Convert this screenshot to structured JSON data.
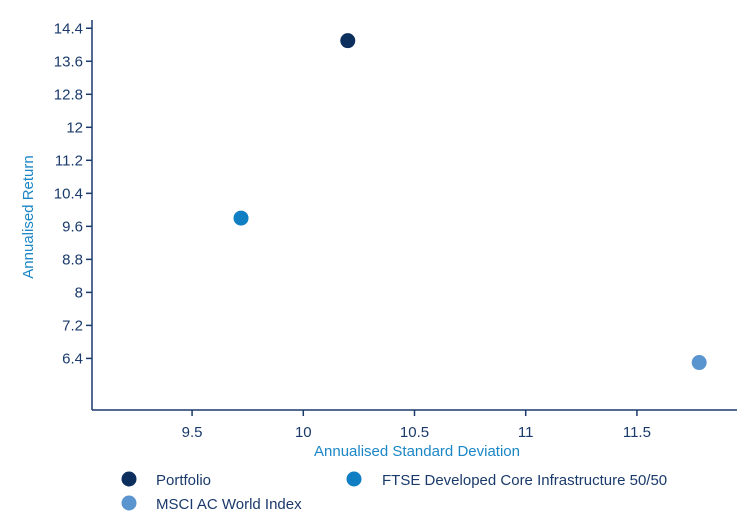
{
  "chart_data": {
    "type": "scatter",
    "title": "",
    "xlabel": "Annualised Standard Deviation",
    "ylabel": "Annualised Return",
    "xlim": [
      9.05,
      11.95
    ],
    "ylim": [
      5.15,
      14.6
    ],
    "xticks": [
      9.5,
      10,
      10.5,
      11,
      11.5
    ],
    "xtick_labels": [
      "9.5",
      "10",
      "10.5",
      "11",
      "11.5"
    ],
    "yticks": [
      6.4,
      7.2,
      8,
      8.8,
      9.6,
      10.4,
      11.2,
      12,
      12.8,
      13.6,
      14.4
    ],
    "ytick_labels": [
      "6.4",
      "7.2",
      "8",
      "8.8",
      "9.6",
      "10.4",
      "11.2",
      "12",
      "12.8",
      "13.6",
      "14.4"
    ],
    "grid": false,
    "legend_position": "bottom",
    "series": [
      {
        "name": "Portfolio",
        "color": "#0d2f5e",
        "x": [
          10.2
        ],
        "y": [
          14.1
        ]
      },
      {
        "name": "FTSE Developed Core Infrastructure 50/50",
        "color": "#0f7ec2",
        "x": [
          9.72
        ],
        "y": [
          9.8
        ]
      },
      {
        "name": "MSCI AC World Index",
        "color": "#5b95cf",
        "x": [
          11.78
        ],
        "y": [
          6.3
        ]
      }
    ]
  },
  "colors": {
    "axis": "#1a3a6b",
    "axis_title": "#1b86c6"
  }
}
